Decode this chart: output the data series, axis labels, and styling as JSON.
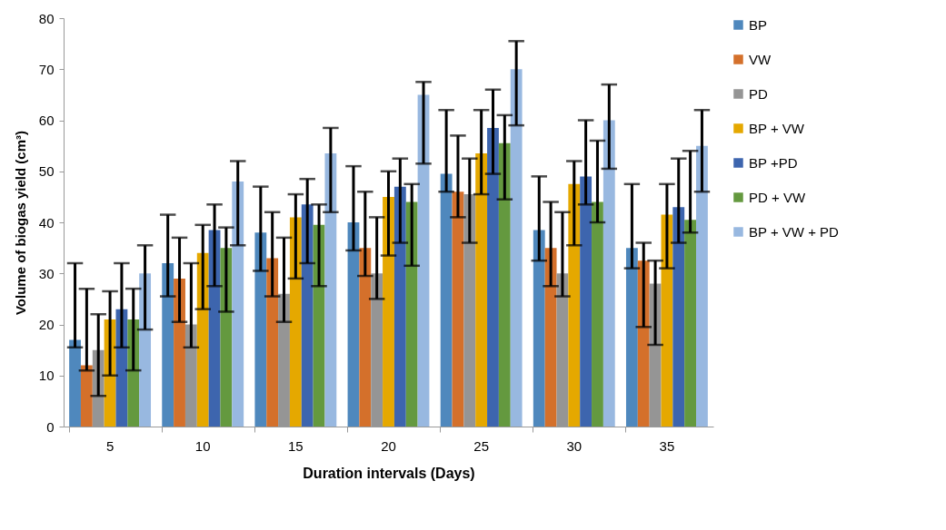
{
  "chart_data": {
    "type": "bar",
    "xlabel": "Duration  intervals (Days)",
    "ylabel": "Volume of biogas yield (cm³)",
    "categories": [
      "5",
      "10",
      "15",
      "20",
      "25",
      "30",
      "35"
    ],
    "ylim": [
      0,
      80
    ],
    "yticks": [
      0,
      10,
      20,
      30,
      40,
      50,
      60,
      70,
      80
    ],
    "grid": false,
    "legend": "right",
    "series": [
      {
        "name": "BP",
        "color": "#4f88bd",
        "values": [
          17,
          32,
          38,
          40,
          49.5,
          38.5,
          35
        ],
        "errors": [
          [
            15.5,
            32
          ],
          [
            25.5,
            41.5
          ],
          [
            30.5,
            47
          ],
          [
            34.5,
            51
          ],
          [
            46,
            62
          ],
          [
            32.5,
            49
          ],
          [
            31,
            47.5
          ]
        ]
      },
      {
        "name": "VW",
        "color": "#d4702b",
        "values": [
          12,
          29,
          33,
          35,
          46,
          35,
          32.5
        ],
        "errors": [
          [
            11,
            27
          ],
          [
            20.5,
            37
          ],
          [
            25.5,
            42
          ],
          [
            29.5,
            46
          ],
          [
            41,
            57
          ],
          [
            27.5,
            44
          ],
          [
            19.5,
            36
          ]
        ]
      },
      {
        "name": "PD",
        "color": "#959595",
        "values": [
          15,
          20,
          26,
          30,
          45.5,
          30,
          28
        ],
        "errors": [
          [
            6,
            22
          ],
          [
            15.5,
            32
          ],
          [
            20.5,
            37
          ],
          [
            25,
            41
          ],
          [
            36,
            52.5
          ],
          [
            25.5,
            42
          ],
          [
            16,
            32.5
          ]
        ]
      },
      {
        "name": "BP + VW",
        "color": "#e5a800",
        "values": [
          21,
          34,
          41,
          45,
          53.5,
          47.5,
          41.5
        ],
        "errors": [
          [
            10,
            26.5
          ],
          [
            23,
            39.5
          ],
          [
            29,
            45.5
          ],
          [
            33.5,
            50
          ],
          [
            45.5,
            62
          ],
          [
            35.5,
            52
          ],
          [
            31,
            47.5
          ]
        ]
      },
      {
        "name": "BP +PD",
        "color": "#3d65ae",
        "values": [
          23,
          38.5,
          43.5,
          47,
          58.5,
          49,
          43
        ],
        "errors": [
          [
            15.5,
            32
          ],
          [
            27.5,
            43.5
          ],
          [
            32,
            48.5
          ],
          [
            36,
            52.5
          ],
          [
            49.5,
            66
          ],
          [
            43.5,
            60
          ],
          [
            36,
            52.5
          ]
        ]
      },
      {
        "name": "PD + VW",
        "color": "#64993f",
        "values": [
          21,
          35,
          39.5,
          44,
          55.5,
          44,
          40.5
        ],
        "errors": [
          [
            11,
            27
          ],
          [
            22.5,
            39
          ],
          [
            27.5,
            43.5
          ],
          [
            31.5,
            47.5
          ],
          [
            44.5,
            61
          ],
          [
            40,
            56
          ],
          [
            38,
            54
          ]
        ]
      },
      {
        "name": "BP + VW + PD",
        "color": "#98b8e0",
        "values": [
          30,
          48,
          53.5,
          65,
          70,
          60,
          55
        ],
        "errors": [
          [
            19,
            35.5
          ],
          [
            35.5,
            52
          ],
          [
            42,
            58.5
          ],
          [
            51.5,
            67.5
          ],
          [
            59,
            75.5
          ],
          [
            50.5,
            67
          ],
          [
            46,
            62
          ]
        ]
      }
    ]
  }
}
